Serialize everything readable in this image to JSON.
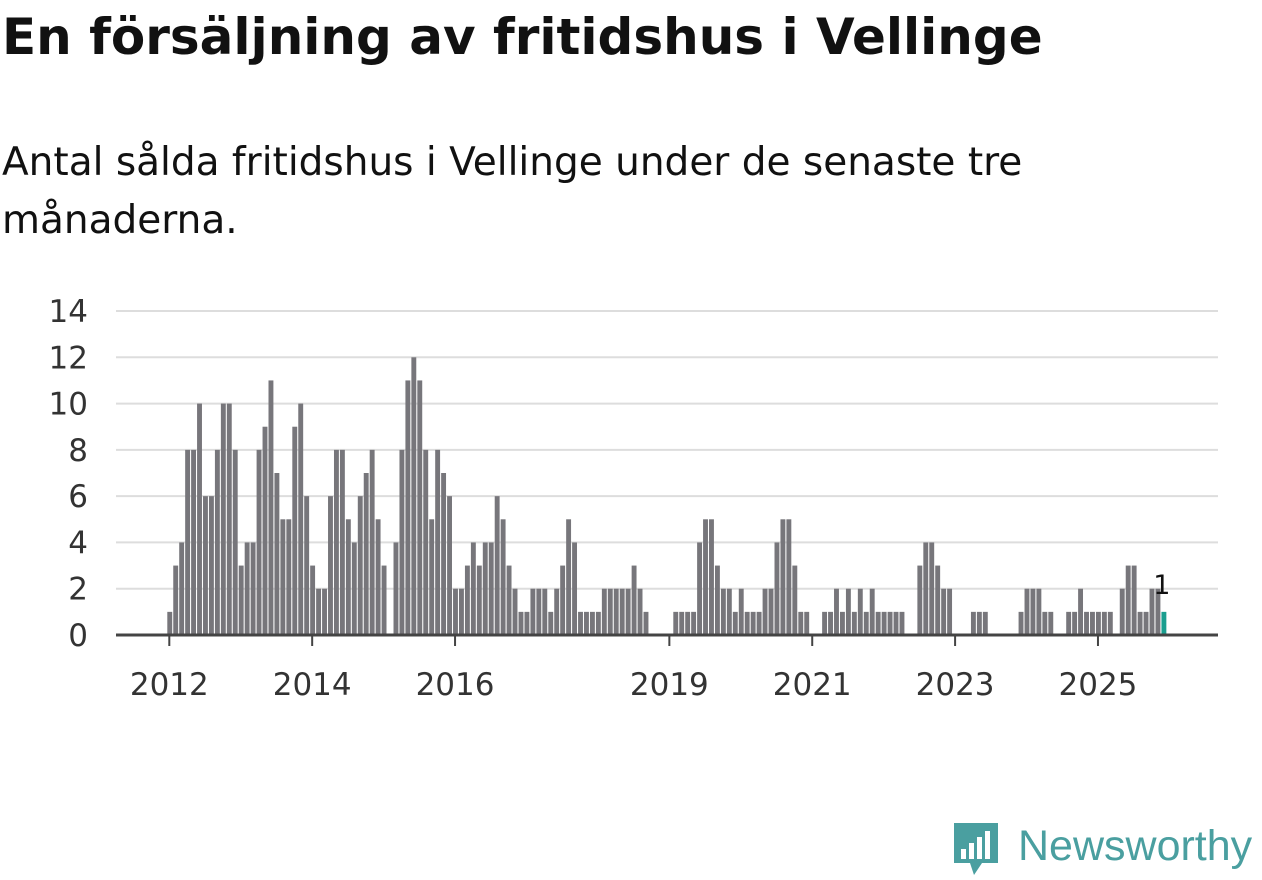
{
  "header": {
    "title": "En försäljning av fritidshus i Vellinge",
    "subtitle": "Antal sålda fritidshus i Vellinge under de senaste tre månaderna."
  },
  "brand": {
    "name": "Newsworthy",
    "icon": "newsworthy-logo-icon",
    "color": "#4a9fa0"
  },
  "chart_data": {
    "type": "bar",
    "title": "En försäljning av fritidshus i Vellinge",
    "subtitle": "Antal sålda fritidshus i Vellinge under de senaste tre månaderna.",
    "xlabel": "",
    "ylabel": "",
    "ylim": [
      0,
      14
    ],
    "yticks": [
      0,
      2,
      4,
      6,
      8,
      10,
      12,
      14
    ],
    "grid": true,
    "x_start": "2012-01",
    "xticks": [
      {
        "label": "2012",
        "index": 0
      },
      {
        "label": "2014",
        "index": 24
      },
      {
        "label": "2016",
        "index": 48
      },
      {
        "label": "2019",
        "index": 84
      },
      {
        "label": "2021",
        "index": 108
      },
      {
        "label": "2023",
        "index": 132
      },
      {
        "label": "2025",
        "index": 156
      }
    ],
    "values": [
      1,
      3,
      4,
      8,
      8,
      10,
      6,
      6,
      8,
      10,
      10,
      8,
      3,
      4,
      4,
      8,
      9,
      11,
      7,
      5,
      5,
      9,
      10,
      6,
      3,
      2,
      2,
      6,
      8,
      8,
      5,
      4,
      6,
      7,
      8,
      5,
      3,
      0,
      4,
      8,
      11,
      12,
      11,
      8,
      5,
      8,
      7,
      6,
      2,
      2,
      3,
      4,
      3,
      4,
      4,
      6,
      5,
      3,
      2,
      1,
      1,
      2,
      2,
      2,
      1,
      2,
      3,
      5,
      4,
      1,
      1,
      1,
      1,
      2,
      2,
      2,
      2,
      2,
      3,
      2,
      1,
      0,
      0,
      0,
      0,
      1,
      1,
      1,
      1,
      4,
      5,
      5,
      3,
      2,
      2,
      1,
      2,
      1,
      1,
      1,
      2,
      2,
      4,
      5,
      5,
      3,
      1,
      1,
      0,
      0,
      1,
      1,
      2,
      1,
      2,
      1,
      2,
      1,
      2,
      1,
      1,
      1,
      1,
      1,
      0,
      0,
      3,
      4,
      4,
      3,
      2,
      2,
      0,
      0,
      0,
      1,
      1,
      1,
      0,
      0,
      0,
      0,
      0,
      1,
      2,
      2,
      2,
      1,
      1,
      0,
      0,
      1,
      1,
      2,
      1,
      1,
      1,
      1,
      1,
      0,
      2,
      3,
      3,
      1,
      1,
      2,
      2,
      1
    ],
    "highlight": {
      "index": 167,
      "value": 1,
      "color": "#1a9e8f",
      "label": "1"
    },
    "bar_color": "#77767b",
    "axis_color": "#444444",
    "grid_color": "#dddddd"
  }
}
